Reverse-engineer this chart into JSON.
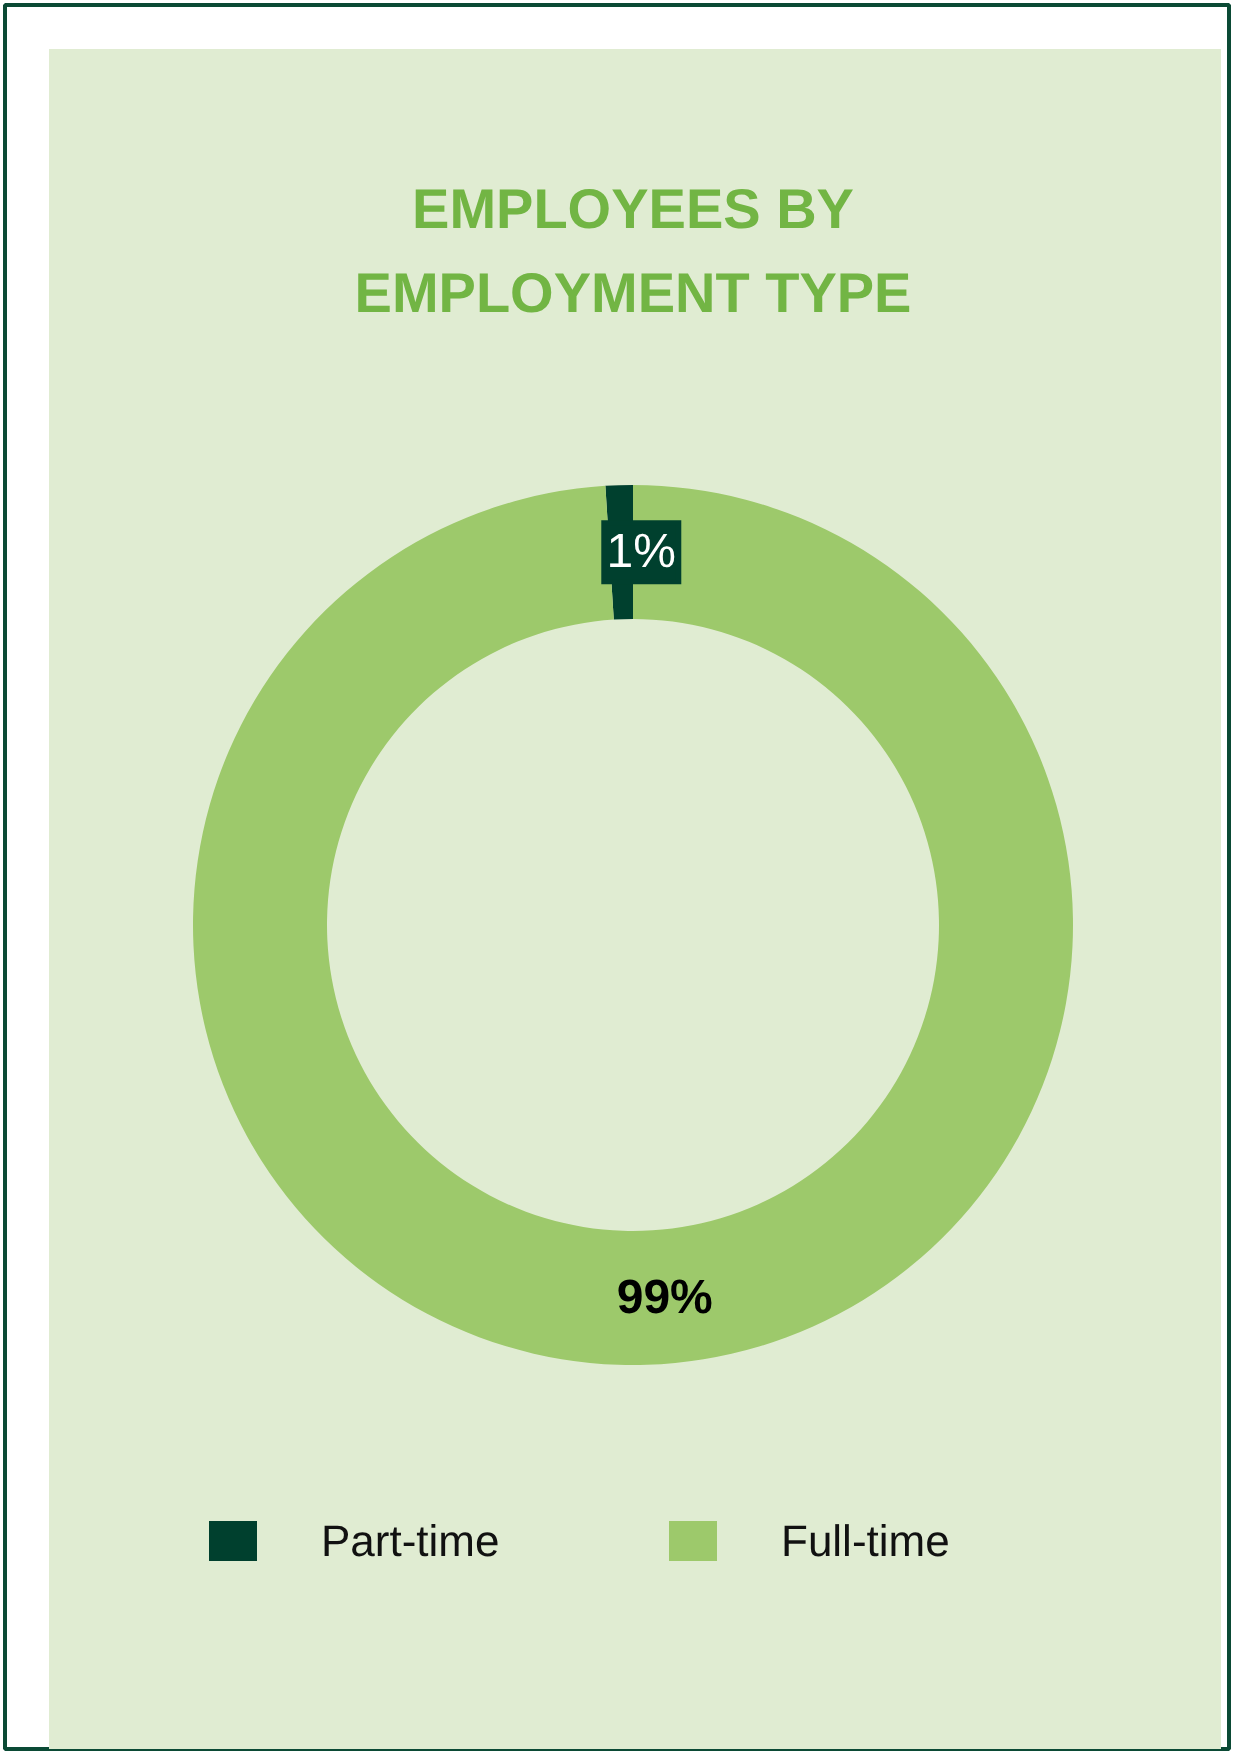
{
  "chart_data": {
    "type": "donut",
    "title": "EMPLOYEES BY EMPLOYMENT TYPE",
    "categories": [
      "Part-time",
      "Full-time"
    ],
    "values": [
      1,
      99
    ],
    "colors": [
      "#00402e",
      "#9dc96b"
    ],
    "value_labels": [
      "1%",
      "99%"
    ],
    "legend": "bottom"
  }
}
